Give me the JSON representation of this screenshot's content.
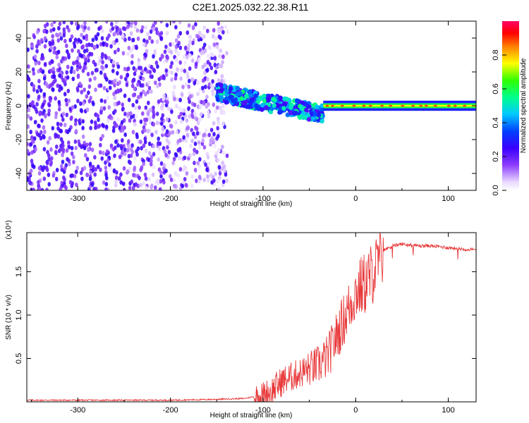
{
  "title": "C2E1.2025.032.22.38.R11",
  "chart_data": [
    {
      "type": "heatmap",
      "xlabel": "Height of straight line (km)",
      "ylabel": "Frequency (Hz)",
      "xlim": [
        -355,
        130
      ],
      "ylim": [
        -50,
        50
      ],
      "x_ticks": [
        "-300",
        "-200",
        "-100",
        "0",
        "100"
      ],
      "y_ticks": [
        "40",
        "20",
        "0",
        "-20",
        "-40"
      ],
      "colorbar": {
        "label": "Normalized spectral amplitude",
        "range": [
          0,
          1
        ],
        "ticks": [
          "0.0",
          "0.2",
          "0.4",
          "0.6",
          "0.8"
        ]
      },
      "features": [
        {
          "region": "noise",
          "x": [
            -355,
            -138
          ],
          "freq": [
            -50,
            50
          ],
          "amplitude": [
            0.05,
            0.25
          ]
        },
        {
          "region": "spread_signal",
          "x": [
            -150,
            -35
          ],
          "freq_center": [
            8,
            -5
          ],
          "freq_width": [
            10,
            10
          ],
          "amplitude": [
            0.2,
            0.55
          ]
        },
        {
          "region": "narrow_line",
          "x": [
            -35,
            130
          ],
          "freq_center": 0,
          "freq_width": 3,
          "amplitude": [
            0.6,
            1.0
          ]
        }
      ]
    },
    {
      "type": "line",
      "xlabel": "Height of straight line (km)",
      "ylabel": "SNR (10 * v/v)",
      "scale_label": "(x10⁴)",
      "xlim": [
        -355,
        130
      ],
      "ylim": [
        0,
        1.95
      ],
      "x_ticks": [
        "-300",
        "-200",
        "-100",
        "0",
        "100"
      ],
      "y_ticks": [
        "1.5",
        "1.0",
        "0.5"
      ],
      "color": "#e8393a",
      "x": [
        -355,
        -300,
        -250,
        -200,
        -150,
        -120,
        -100,
        -90,
        -80,
        -70,
        -60,
        -50,
        -40,
        -30,
        -20,
        -10,
        0,
        10,
        20,
        30,
        40,
        50,
        60,
        70,
        80,
        90,
        100,
        110,
        120,
        130
      ],
      "y": [
        0.02,
        0.02,
        0.02,
        0.02,
        0.03,
        0.04,
        0.08,
        0.15,
        0.25,
        0.3,
        0.35,
        0.4,
        0.45,
        0.55,
        0.8,
        1.05,
        1.3,
        1.4,
        1.55,
        1.75,
        1.8,
        1.82,
        1.81,
        1.8,
        1.8,
        1.79,
        1.78,
        1.77,
        1.76,
        1.75
      ]
    }
  ]
}
